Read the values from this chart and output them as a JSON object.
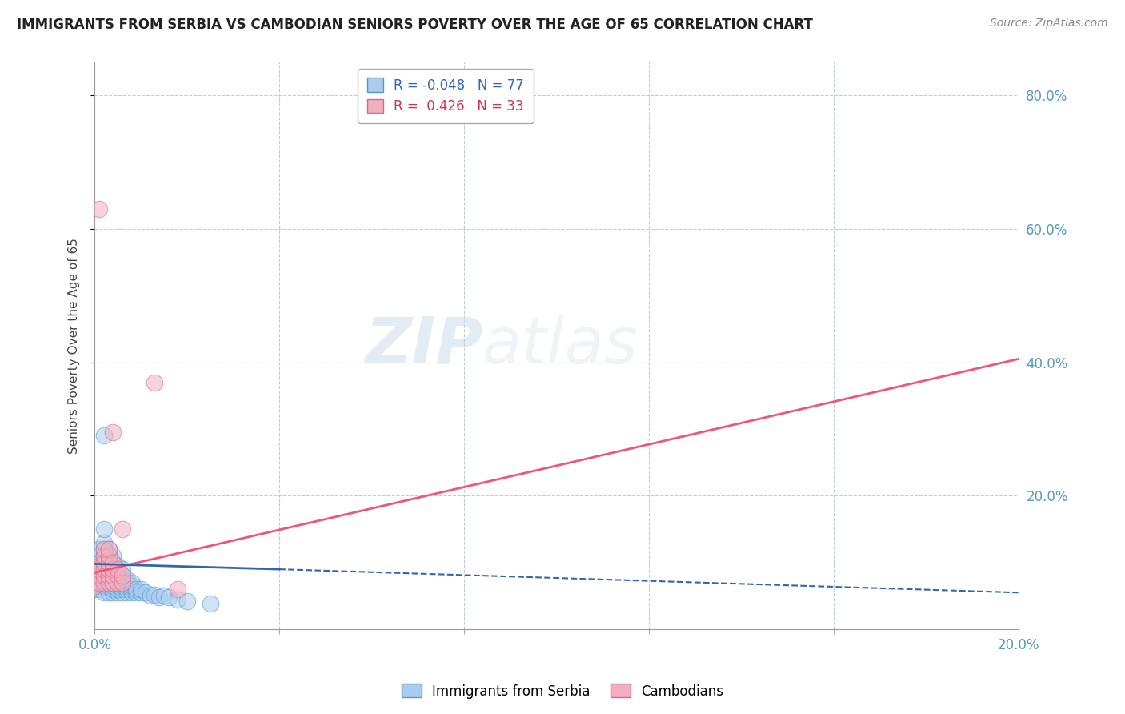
{
  "title": "IMMIGRANTS FROM SERBIA VS CAMBODIAN SENIORS POVERTY OVER THE AGE OF 65 CORRELATION CHART",
  "source": "Source: ZipAtlas.com",
  "ylabel": "Seniors Poverty Over the Age of 65",
  "xlim": [
    0.0,
    0.2
  ],
  "ylim": [
    0.0,
    0.85
  ],
  "serbia_color": "#aaccee",
  "cambodian_color": "#f0b0c0",
  "serbia_edge_color": "#5599cc",
  "cambodian_edge_color": "#dd6688",
  "trend_serbia_color": "#3366aa",
  "trend_cambodian_color": "#ee5577",
  "legend_R_serbia": "-0.048",
  "legend_N_serbia": "77",
  "legend_R_cambodian": "0.426",
  "legend_N_cambodian": "33",
  "watermark_zip": "ZIP",
  "watermark_atlas": "atlas",
  "serbia_scatter": [
    [
      0.0,
      0.06
    ],
    [
      0.0,
      0.075
    ],
    [
      0.001,
      0.06
    ],
    [
      0.001,
      0.07
    ],
    [
      0.001,
      0.08
    ],
    [
      0.001,
      0.09
    ],
    [
      0.001,
      0.1
    ],
    [
      0.001,
      0.11
    ],
    [
      0.001,
      0.12
    ],
    [
      0.002,
      0.055
    ],
    [
      0.002,
      0.065
    ],
    [
      0.002,
      0.075
    ],
    [
      0.002,
      0.08
    ],
    [
      0.002,
      0.09
    ],
    [
      0.002,
      0.1
    ],
    [
      0.002,
      0.11
    ],
    [
      0.002,
      0.12
    ],
    [
      0.002,
      0.13
    ],
    [
      0.002,
      0.15
    ],
    [
      0.002,
      0.29
    ],
    [
      0.003,
      0.055
    ],
    [
      0.003,
      0.065
    ],
    [
      0.003,
      0.07
    ],
    [
      0.003,
      0.075
    ],
    [
      0.003,
      0.08
    ],
    [
      0.003,
      0.09
    ],
    [
      0.003,
      0.095
    ],
    [
      0.003,
      0.1
    ],
    [
      0.003,
      0.11
    ],
    [
      0.003,
      0.12
    ],
    [
      0.004,
      0.055
    ],
    [
      0.004,
      0.06
    ],
    [
      0.004,
      0.065
    ],
    [
      0.004,
      0.07
    ],
    [
      0.004,
      0.075
    ],
    [
      0.004,
      0.08
    ],
    [
      0.004,
      0.09
    ],
    [
      0.004,
      0.095
    ],
    [
      0.004,
      0.1
    ],
    [
      0.004,
      0.11
    ],
    [
      0.005,
      0.055
    ],
    [
      0.005,
      0.06
    ],
    [
      0.005,
      0.065
    ],
    [
      0.005,
      0.07
    ],
    [
      0.005,
      0.075
    ],
    [
      0.005,
      0.08
    ],
    [
      0.005,
      0.09
    ],
    [
      0.005,
      0.095
    ],
    [
      0.006,
      0.055
    ],
    [
      0.006,
      0.06
    ],
    [
      0.006,
      0.065
    ],
    [
      0.006,
      0.07
    ],
    [
      0.006,
      0.075
    ],
    [
      0.006,
      0.08
    ],
    [
      0.006,
      0.09
    ],
    [
      0.007,
      0.055
    ],
    [
      0.007,
      0.06
    ],
    [
      0.007,
      0.065
    ],
    [
      0.007,
      0.07
    ],
    [
      0.007,
      0.075
    ],
    [
      0.008,
      0.055
    ],
    [
      0.008,
      0.06
    ],
    [
      0.008,
      0.065
    ],
    [
      0.008,
      0.07
    ],
    [
      0.009,
      0.055
    ],
    [
      0.009,
      0.06
    ],
    [
      0.01,
      0.055
    ],
    [
      0.01,
      0.06
    ],
    [
      0.011,
      0.055
    ],
    [
      0.012,
      0.05
    ],
    [
      0.013,
      0.052
    ],
    [
      0.014,
      0.048
    ],
    [
      0.015,
      0.05
    ],
    [
      0.016,
      0.048
    ],
    [
      0.018,
      0.045
    ],
    [
      0.02,
      0.042
    ],
    [
      0.025,
      0.038
    ]
  ],
  "cambodian_scatter": [
    [
      0.0,
      0.065
    ],
    [
      0.0,
      0.08
    ],
    [
      0.0,
      0.09
    ],
    [
      0.001,
      0.07
    ],
    [
      0.001,
      0.08
    ],
    [
      0.001,
      0.09
    ],
    [
      0.001,
      0.095
    ],
    [
      0.001,
      0.63
    ],
    [
      0.002,
      0.07
    ],
    [
      0.002,
      0.08
    ],
    [
      0.002,
      0.09
    ],
    [
      0.002,
      0.1
    ],
    [
      0.002,
      0.11
    ],
    [
      0.002,
      0.12
    ],
    [
      0.003,
      0.07
    ],
    [
      0.003,
      0.08
    ],
    [
      0.003,
      0.09
    ],
    [
      0.003,
      0.1
    ],
    [
      0.003,
      0.11
    ],
    [
      0.003,
      0.12
    ],
    [
      0.004,
      0.07
    ],
    [
      0.004,
      0.08
    ],
    [
      0.004,
      0.09
    ],
    [
      0.004,
      0.1
    ],
    [
      0.004,
      0.295
    ],
    [
      0.005,
      0.07
    ],
    [
      0.005,
      0.08
    ],
    [
      0.005,
      0.09
    ],
    [
      0.006,
      0.07
    ],
    [
      0.006,
      0.08
    ],
    [
      0.006,
      0.15
    ],
    [
      0.013,
      0.37
    ],
    [
      0.018,
      0.06
    ]
  ],
  "trend_camb_x0": 0.0,
  "trend_camb_y0": 0.085,
  "trend_camb_x1": 0.2,
  "trend_camb_y1": 0.405,
  "trend_serb_solid_x0": 0.0,
  "trend_serb_solid_y0": 0.098,
  "trend_serb_solid_x1": 0.04,
  "trend_serb_solid_y1": 0.09,
  "trend_serb_dash_x0": 0.04,
  "trend_serb_dash_y0": 0.09,
  "trend_serb_dash_x1": 0.2,
  "trend_serb_dash_y1": 0.055
}
